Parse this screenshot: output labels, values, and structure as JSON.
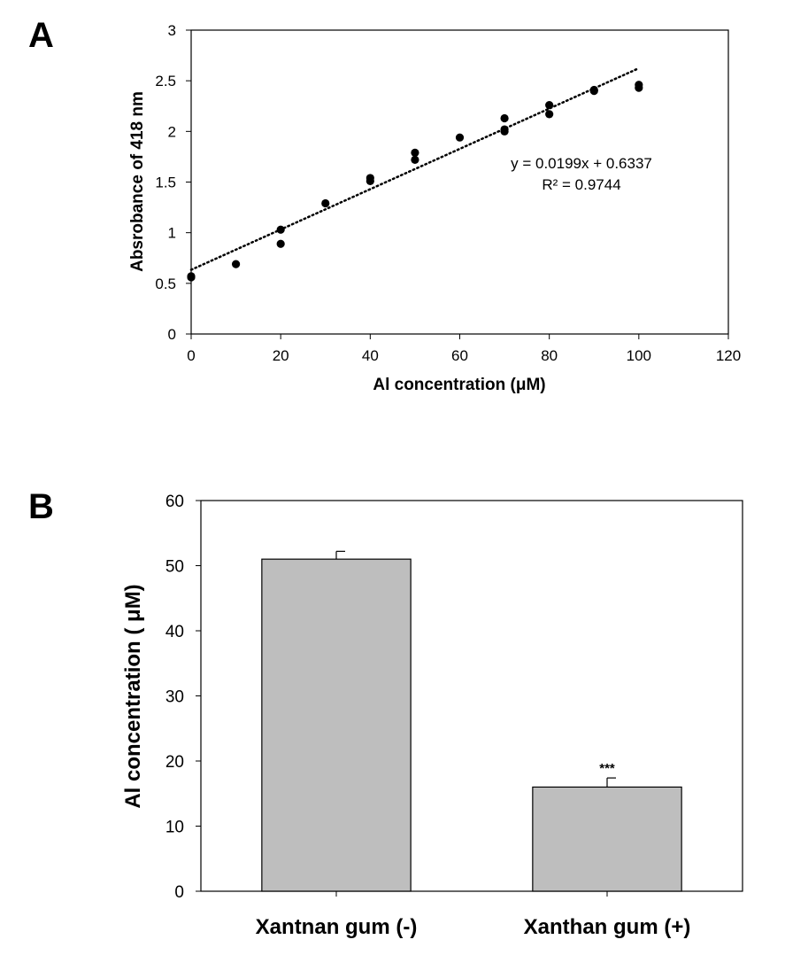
{
  "chart_data": [
    {
      "panel": "A",
      "type": "scatter",
      "xlabel": "Al concentration (μM)",
      "ylabel": "Absrobance of 418 nm",
      "xlim": [
        0,
        120
      ],
      "ylim": [
        0,
        3
      ],
      "xticks": [
        "0",
        "20",
        "40",
        "60",
        "80",
        "100",
        "120"
      ],
      "yticks": [
        "0",
        "0.5",
        "1",
        "1.5",
        "2",
        "2.5",
        "3"
      ],
      "points": [
        {
          "x": 0,
          "y": 0.57
        },
        {
          "x": 0,
          "y": 0.56
        },
        {
          "x": 10,
          "y": 0.69
        },
        {
          "x": 20,
          "y": 1.03
        },
        {
          "x": 20,
          "y": 0.89
        },
        {
          "x": 30,
          "y": 1.29
        },
        {
          "x": 40,
          "y": 1.54
        },
        {
          "x": 40,
          "y": 1.51
        },
        {
          "x": 50,
          "y": 1.79
        },
        {
          "x": 50,
          "y": 1.72
        },
        {
          "x": 60,
          "y": 1.94
        },
        {
          "x": 70,
          "y": 2.13
        },
        {
          "x": 70,
          "y": 2.02
        },
        {
          "x": 70,
          "y": 2.0
        },
        {
          "x": 80,
          "y": 2.26
        },
        {
          "x": 80,
          "y": 2.17
        },
        {
          "x": 90,
          "y": 2.41
        },
        {
          "x": 90,
          "y": 2.4
        },
        {
          "x": 100,
          "y": 2.46
        },
        {
          "x": 100,
          "y": 2.43
        }
      ],
      "trendline": {
        "slope": 0.0199,
        "intercept": 0.6337,
        "x_range": [
          0,
          100
        ],
        "style": "dotted"
      },
      "equation": "y = 0.0199x + 0.6337",
      "r_squared": "R² = 0.9744"
    },
    {
      "panel": "B",
      "type": "bar",
      "categories": [
        "Xantnan gum (-)",
        "Xanthan gum (+)"
      ],
      "values": [
        51,
        16
      ],
      "errors": [
        1.2,
        1.4
      ],
      "significance": [
        "",
        "***"
      ],
      "ylabel": "Al concentration ( μM)",
      "ylim": [
        0,
        60
      ],
      "yticks": [
        "0",
        "10",
        "20",
        "30",
        "40",
        "50",
        "60"
      ],
      "bar_color": "#bebebe"
    }
  ],
  "labels": {
    "panel_a": "A",
    "panel_b": "B"
  }
}
